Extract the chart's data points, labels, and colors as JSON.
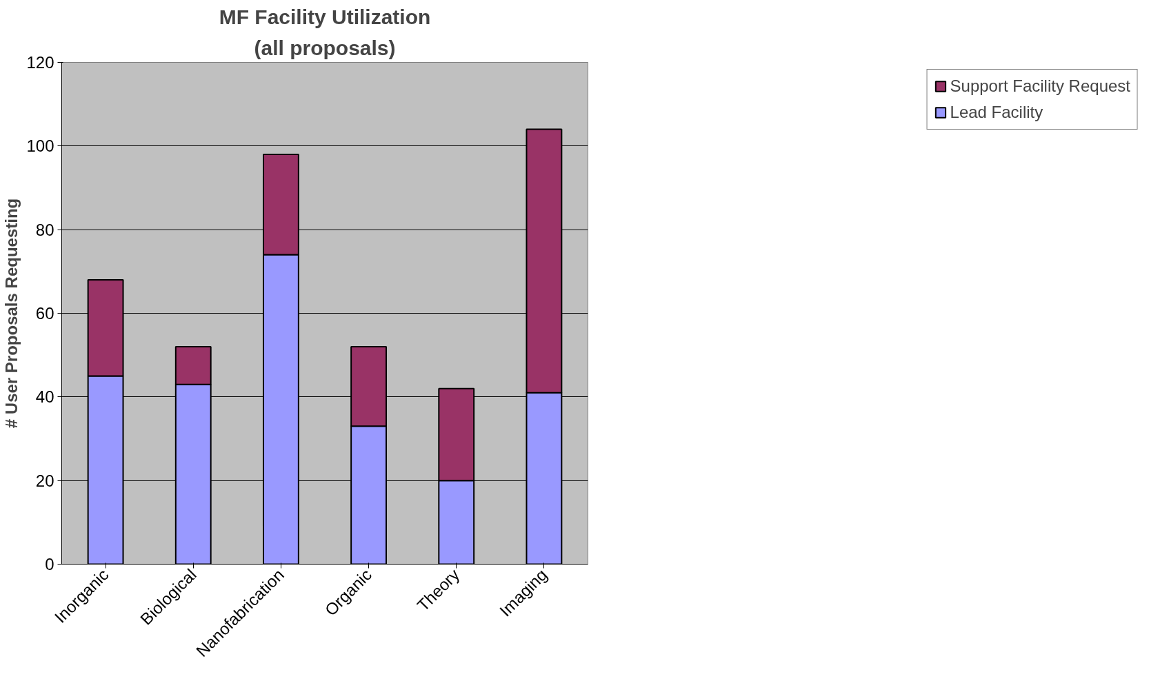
{
  "chart_data": {
    "type": "bar",
    "title": "MF Facility Utilization",
    "subtitle": "(all proposals)",
    "ylabel": "# User Proposals Requesting",
    "categories": [
      "Inorganic",
      "Biological",
      "Nanofabrication",
      "Organic",
      "Theory",
      "Imaging"
    ],
    "stacked": true,
    "series": [
      {
        "name": "Lead Facility",
        "color": "#9999ff",
        "values": [
          45,
          43,
          74,
          33,
          20,
          41
        ]
      },
      {
        "name": "Support Facility Request",
        "color": "#993366",
        "values": [
          23,
          9,
          24,
          19,
          22,
          63
        ]
      }
    ],
    "ylim": [
      0,
      120
    ],
    "yticks": [
      0,
      20,
      40,
      60,
      80,
      100,
      120
    ],
    "grid": "y",
    "legend": "right"
  }
}
